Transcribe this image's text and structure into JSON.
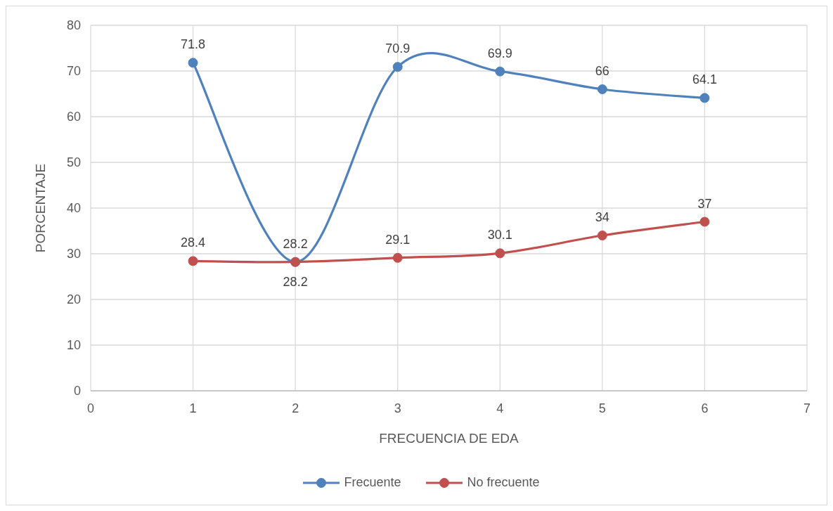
{
  "chart_data": {
    "type": "line",
    "xlabel": "FRECUENCIA DE EDA",
    "ylabel": "PORCENTAJE",
    "x": [
      1,
      2,
      3,
      4,
      5,
      6
    ],
    "series": [
      {
        "name": "Frecuente",
        "color": "#4f81bd",
        "values": [
          71.8,
          28.2,
          70.9,
          69.9,
          66,
          64.1
        ]
      },
      {
        "name": "No frecuente",
        "color": "#c0504d",
        "values": [
          28.4,
          28.2,
          29.1,
          30.1,
          34,
          37
        ]
      }
    ],
    "xlim": [
      0,
      7
    ],
    "xticks": [
      0,
      1,
      2,
      3,
      4,
      5,
      6,
      7
    ],
    "ylim": [
      0,
      80
    ],
    "yticks": [
      0,
      10,
      20,
      30,
      40,
      50,
      60,
      70,
      80
    ],
    "grid": true,
    "legend": "bottom",
    "marker": "circle",
    "line_style": "solid",
    "data_labels": true
  }
}
